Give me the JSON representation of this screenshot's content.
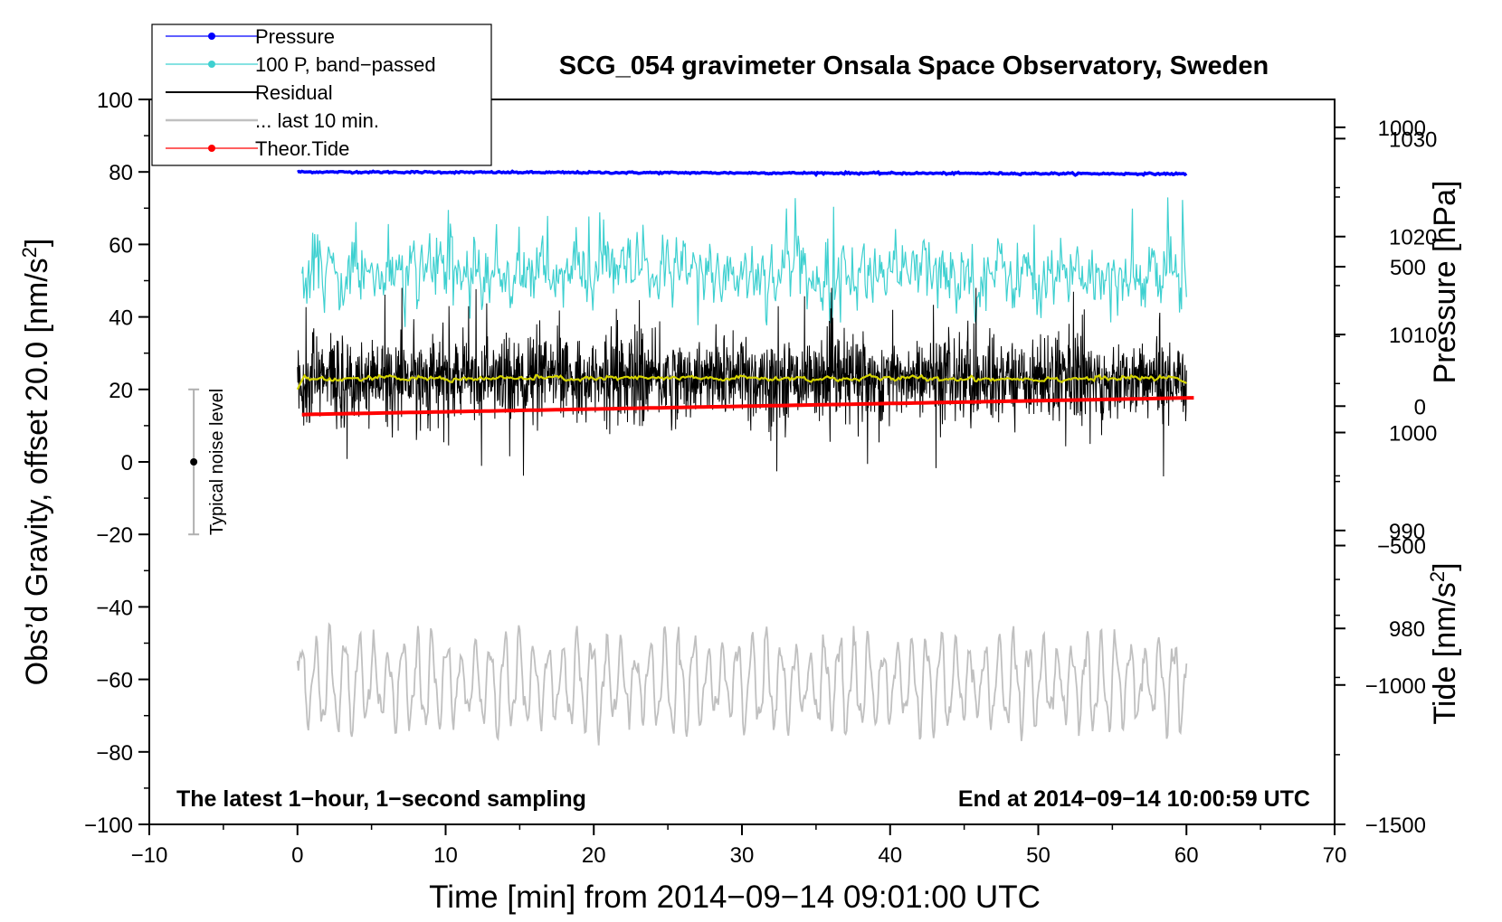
{
  "chart_data": {
    "type": "line",
    "title": "SCG_054 gravimeter Onsala Space Observatory, Sweden",
    "xlabel": "Time [min] from 2014−09−14 09:01:00 UTC",
    "ylabel_left": "Obs’d Gravity, offset 20.0 [nm/s",
    "ylabel_left_sup": "2",
    "ylabel_left_close": "]",
    "ylabel_right_pressure": "Pressure [hPa]",
    "ylabel_right_tide": "Tide [nm/s",
    "ylabel_right_tide_sup": "2",
    "ylabel_right_tide_close": "]",
    "xlim": [
      -10,
      70
    ],
    "ylim": [
      -100,
      100
    ],
    "pressure_lim": [
      960,
      1034
    ],
    "tide_lim": [
      -1500,
      1100
    ],
    "x_ticks": [
      -10,
      0,
      10,
      20,
      30,
      40,
      50,
      60,
      70
    ],
    "x_tick_labels": [
      "−10",
      "0",
      "10",
      "20",
      "30",
      "40",
      "50",
      "60",
      "70"
    ],
    "y_ticks": [
      -100,
      -80,
      -60,
      -40,
      -20,
      0,
      20,
      40,
      60,
      80,
      100
    ],
    "y_tick_labels": [
      "−100",
      "−80",
      "−60",
      "−40",
      "−20",
      "0",
      "20",
      "40",
      "60",
      "80",
      "100"
    ],
    "pressure_ticks": [
      980,
      990,
      1000,
      1010,
      1020,
      1030
    ],
    "pressure_tick_labels": [
      "980",
      "990",
      "1000",
      "1010",
      "1020",
      "1030"
    ],
    "tide_ticks": [
      -1500,
      -1000,
      -500,
      0,
      500,
      1000
    ],
    "tide_tick_labels": [
      "−1500",
      "−1000",
      "−500",
      "0",
      "500",
      "1000"
    ],
    "legend": {
      "position": "top-left",
      "entries": [
        {
          "label": "Pressure",
          "color": "#0000ff",
          "marker": true
        },
        {
          "label": "100 P, band−passed",
          "color": "#3ed0d0",
          "marker": true
        },
        {
          "label": "Residual",
          "color": "#000000",
          "marker": false
        },
        {
          "label": "... last 10 min.",
          "color": "#c0c0c0",
          "marker": false
        },
        {
          "label": "Theor.Tide",
          "color": "#ff0000",
          "marker": true
        }
      ]
    },
    "annotations": {
      "bottom_left": "The latest 1−hour, 1−second sampling",
      "bottom_right": "End at 2014−09−14 10:00:59 UTC",
      "noise_label": "Typical noise level"
    },
    "noise_bar": {
      "x": -7,
      "center": 0,
      "low": -20,
      "high": 20
    },
    "series": [
      {
        "name": "Pressure",
        "axis": "pressure",
        "color": "#0000ff",
        "x_range": [
          0,
          60
        ],
        "mean": 1026.6,
        "end": 1026.4,
        "noise": 0.15
      },
      {
        "name": "100 P, band−passed",
        "axis": "left",
        "color": "#3ed0d0",
        "x_range": [
          0.3,
          60
        ],
        "mean": 52,
        "amplitude": 5.5,
        "min": 36,
        "max": 73
      },
      {
        "name": "Residual",
        "axis": "left",
        "color": "#000000",
        "x_range": [
          0,
          60
        ],
        "mean": 23,
        "amplitude": 11,
        "min": -5,
        "max": 48
      },
      {
        "name": "Residual smoothed",
        "axis": "left",
        "color": "#d4d400",
        "x_range": [
          0,
          60
        ],
        "mean": 23,
        "amplitude": 0.8
      },
      {
        "name": "... last 10 min.",
        "axis": "left",
        "color": "#c0c0c0",
        "x_range": [
          0,
          60
        ],
        "mean": -61,
        "amplitude": 12,
        "min": -85,
        "max": -40
      },
      {
        "name": "Theor.Tide",
        "axis": "tide",
        "color": "#ff0000",
        "x_range": [
          0.3,
          60.5
        ],
        "start": -30,
        "end": 30
      }
    ]
  }
}
